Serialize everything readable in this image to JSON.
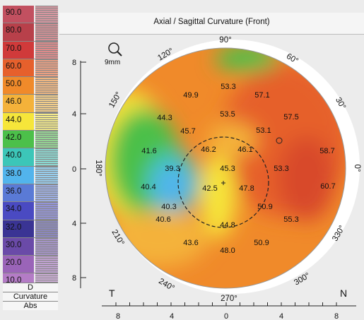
{
  "title": "Axial / Sagittal Curvature (Front)",
  "scale": {
    "steps": [
      {
        "label": "90.0",
        "color": "#c25060"
      },
      {
        "label": "80.0",
        "color": "#b8404a"
      },
      {
        "label": "70.0",
        "color": "#d03a3a"
      },
      {
        "label": "60.0",
        "color": "#e6602c"
      },
      {
        "label": "50.0",
        "color": "#f08a2a"
      },
      {
        "label": "46.0",
        "color": "#f4b23a"
      },
      {
        "label": "44.0",
        "color": "#f6e63a"
      },
      {
        "label": "42.0",
        "color": "#4cc04a"
      },
      {
        "label": "40.0",
        "color": "#3cc6b8"
      },
      {
        "label": "38.0",
        "color": "#52b4ec"
      },
      {
        "label": "36.0",
        "color": "#5a7ad6"
      },
      {
        "label": "34.0",
        "color": "#4a4ac2"
      },
      {
        "label": "32.0",
        "color": "#3a3494"
      },
      {
        "label": "30.0",
        "color": "#6a4aa8"
      },
      {
        "label": "20.0",
        "color": "#9a64b8"
      },
      {
        "label": "10.0",
        "color": "#b47cc6"
      }
    ],
    "footer": [
      "D",
      "Curvature",
      "Abs"
    ]
  },
  "zoom_label": "9mm",
  "angles": [
    "90°",
    "60°",
    "30°",
    "0°",
    "330°",
    "300°",
    "270°",
    "240°",
    "210°",
    "180°",
    "150°",
    "120°"
  ],
  "side_labels": {
    "left": "T",
    "right": "N"
  },
  "y_ticks": [
    "8",
    "4",
    "0",
    "4",
    "8"
  ],
  "x_ticks": [
    "8",
    "4",
    "0",
    "4",
    "8"
  ],
  "values": [
    "53.3",
    "49.9",
    "57.1",
    "44.3",
    "53.5",
    "57.5",
    "45.7",
    "53.1",
    "41.6",
    "46.2",
    "46.1",
    "58.7",
    "39.3",
    "45.3",
    "53.3",
    "40.4",
    "42.5",
    "47.8",
    "60.7",
    "40.3",
    "50.9",
    "40.6",
    "44.8",
    "55.3",
    "43.6",
    "48.0",
    "50.9"
  ]
}
